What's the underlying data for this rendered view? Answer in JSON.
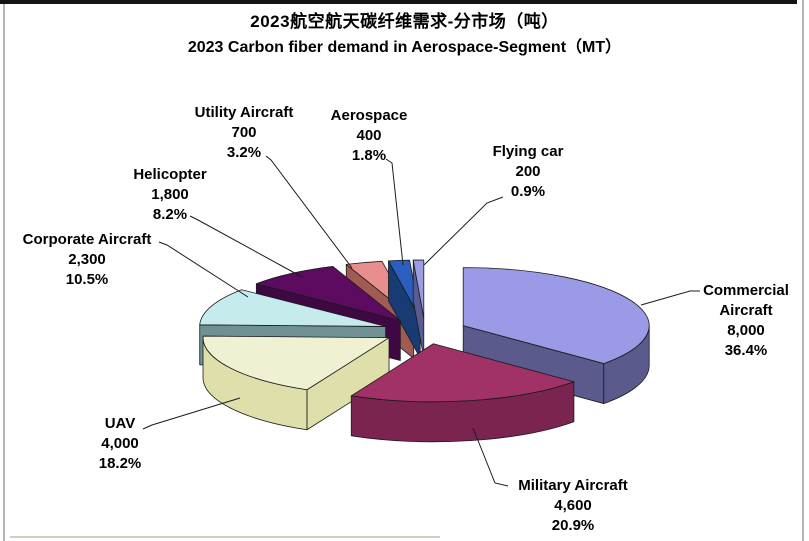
{
  "title": {
    "line1": "2023航空航天碳纤维需求-分市场（吨）",
    "line2": "2023 Carbon fiber demand in Aerospace-Segment（MT）"
  },
  "chart_data": {
    "type": "pie",
    "style": "3d-exploded",
    "direction": "clockwise",
    "start_angle_deg": 0,
    "total": 22000,
    "unit": "MT",
    "legend_position": "none",
    "slices": [
      {
        "id": "commercial-aircraft",
        "name": "Commercial Aircraft",
        "label_lines": [
          "Commercial",
          "Aircraft"
        ],
        "value": 8000,
        "value_text": "8,000",
        "percent": 36.4,
        "pct_text": "36.4%",
        "color_top": "#9A9AE6",
        "color_side": "#5A5A8C"
      },
      {
        "id": "military-aircraft",
        "name": "Military Aircraft",
        "label_lines": [
          "Military Aircraft"
        ],
        "value": 4600,
        "value_text": "4,600",
        "percent": 20.9,
        "pct_text": "20.9%",
        "color_top": "#A03267",
        "color_side": "#7C2450"
      },
      {
        "id": "uav",
        "name": "UAV",
        "label_lines": [
          "UAV"
        ],
        "value": 4000,
        "value_text": "4,000",
        "percent": 18.2,
        "pct_text": "18.2%",
        "color_top": "#F0F0D2",
        "color_side": "#DFDFAC"
      },
      {
        "id": "corporate-aircraft",
        "name": "Corporate Aircraft",
        "label_lines": [
          "Corporate Aircraft"
        ],
        "value": 2300,
        "value_text": "2,300",
        "percent": 10.5,
        "pct_text": "10.5%",
        "color_top": "#C6EBED",
        "color_side": "#6F9193"
      },
      {
        "id": "helicopter",
        "name": "Helicopter",
        "label_lines": [
          "Helicopter"
        ],
        "value": 1800,
        "value_text": "1,800",
        "percent": 8.2,
        "pct_text": "8.2%",
        "color_top": "#5C0B60",
        "color_side": "#3E0842"
      },
      {
        "id": "utility-aircraft",
        "name": "Utility Aircraft",
        "label_lines": [
          "Utility Aircraft"
        ],
        "value": 700,
        "value_text": "700",
        "percent": 3.2,
        "pct_text": "3.2%",
        "color_top": "#E98E8E",
        "color_side": "#A05B54"
      },
      {
        "id": "aerospace",
        "name": "Aerospace",
        "label_lines": [
          "Aerospace"
        ],
        "value": 400,
        "value_text": "400",
        "percent": 1.8,
        "pct_text": "1.8%",
        "color_top": "#2A5FBF",
        "color_side": "#183B73"
      },
      {
        "id": "flying-car",
        "name": "Flying car",
        "label_lines": [
          "Flying car"
        ],
        "value": 200,
        "value_text": "200",
        "percent": 0.9,
        "pct_text": "0.9%",
        "color_top": "#9C9CE2",
        "color_side": "#5B5B91"
      }
    ]
  }
}
